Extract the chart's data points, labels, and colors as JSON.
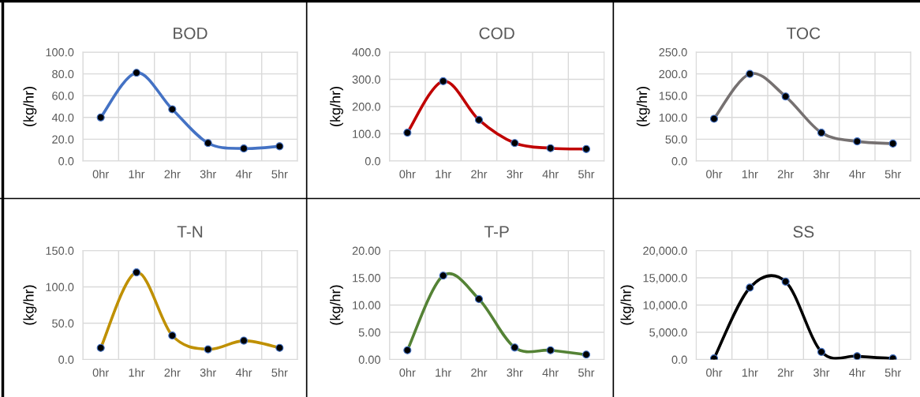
{
  "chart_data": [
    {
      "type": "line",
      "title": "BOD",
      "ylabel": "(kg/hr)",
      "categories": [
        "0hr",
        "1hr",
        "2hr",
        "3hr",
        "4hr",
        "5hr"
      ],
      "series": [
        {
          "color": "#4472c4",
          "values": [
            40,
            81,
            47.5,
            16.5,
            11.5,
            13.5
          ]
        }
      ],
      "ylim": [
        0,
        100
      ],
      "yticks": [
        {
          "value": 0,
          "label": "0.0"
        },
        {
          "value": 20,
          "label": "20.0"
        },
        {
          "value": 40,
          "label": "40.0"
        },
        {
          "value": 60,
          "label": "60.0"
        },
        {
          "value": 80,
          "label": "80.0"
        },
        {
          "value": 100,
          "label": "100.0"
        }
      ],
      "grid": true,
      "marker": "circle",
      "legend": false
    },
    {
      "type": "line",
      "title": "COD",
      "ylabel": "(kg/hr)",
      "categories": [
        "0hr",
        "1hr",
        "2hr",
        "3hr",
        "4hr",
        "5hr"
      ],
      "series": [
        {
          "color": "#c00000",
          "values": [
            104,
            293,
            151,
            66,
            47,
            44
          ]
        }
      ],
      "ylim": [
        0,
        400
      ],
      "yticks": [
        {
          "value": 0,
          "label": "0.0"
        },
        {
          "value": 100,
          "label": "100.0"
        },
        {
          "value": 200,
          "label": "200.0"
        },
        {
          "value": 300,
          "label": "300.0"
        },
        {
          "value": 400,
          "label": "400.0"
        }
      ],
      "grid": true,
      "marker": "circle",
      "legend": false
    },
    {
      "type": "line",
      "title": "TOC",
      "ylabel": "(kg/hr)",
      "categories": [
        "0hr",
        "1hr",
        "2hr",
        "3hr",
        "4hr",
        "5hr"
      ],
      "series": [
        {
          "color": "#767171",
          "values": [
            97,
            200,
            148,
            65,
            45,
            40
          ]
        }
      ],
      "ylim": [
        0,
        250
      ],
      "yticks": [
        {
          "value": 0,
          "label": "0.0"
        },
        {
          "value": 50,
          "label": "50.0"
        },
        {
          "value": 100,
          "label": "100.0"
        },
        {
          "value": 150,
          "label": "150.0"
        },
        {
          "value": 200,
          "label": "200.0"
        },
        {
          "value": 250,
          "label": "250.0"
        }
      ],
      "grid": true,
      "marker": "circle",
      "legend": false
    },
    {
      "type": "line",
      "title": "T-N",
      "ylabel": "(kg/hr)",
      "categories": [
        "0hr",
        "1hr",
        "2hr",
        "3hr",
        "4hr",
        "5hr"
      ],
      "series": [
        {
          "color": "#bf9000",
          "values": [
            16,
            120,
            33,
            14,
            26,
            16
          ]
        }
      ],
      "ylim": [
        0,
        150
      ],
      "yticks": [
        {
          "value": 0,
          "label": "0.0"
        },
        {
          "value": 50,
          "label": "50.0"
        },
        {
          "value": 100,
          "label": "100.0"
        },
        {
          "value": 150,
          "label": "150.0"
        }
      ],
      "grid": true,
      "marker": "circle",
      "legend": false
    },
    {
      "type": "line",
      "title": "T-P",
      "ylabel": "(kg/hr)",
      "categories": [
        "0hr",
        "1hr",
        "2hr",
        "3hr",
        "4hr",
        "5hr"
      ],
      "series": [
        {
          "color": "#548235",
          "values": [
            1.7,
            15.4,
            11.1,
            2.2,
            1.7,
            0.9
          ]
        }
      ],
      "ylim": [
        0,
        20
      ],
      "yticks": [
        {
          "value": 0,
          "label": "0.00"
        },
        {
          "value": 5,
          "label": "5.00"
        },
        {
          "value": 10,
          "label": "10.00"
        },
        {
          "value": 15,
          "label": "15.00"
        },
        {
          "value": 20,
          "label": "20.00"
        }
      ],
      "grid": true,
      "marker": "circle",
      "legend": false
    },
    {
      "type": "line",
      "title": "SS",
      "ylabel": "(kg/hr)",
      "categories": [
        "0hr",
        "1hr",
        "2hr",
        "3hr",
        "4hr",
        "5hr"
      ],
      "series": [
        {
          "color": "#000000",
          "values": [
            200,
            13200,
            14300,
            1400,
            600,
            200
          ]
        }
      ],
      "ylim": [
        0,
        20000
      ],
      "yticks": [
        {
          "value": 0,
          "label": "0.0"
        },
        {
          "value": 5000,
          "label": "5,000.0"
        },
        {
          "value": 10000,
          "label": "10,000.0"
        },
        {
          "value": 15000,
          "label": "15,000.0"
        },
        {
          "value": 20000,
          "label": "20,000.0"
        }
      ],
      "grid": true,
      "marker": "circle",
      "legend": false
    }
  ]
}
